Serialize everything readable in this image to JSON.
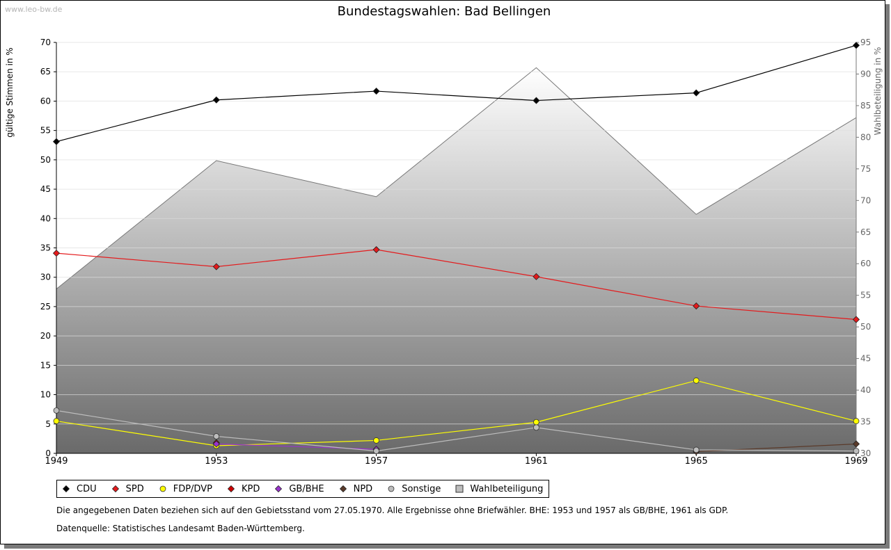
{
  "watermark": "www.leo-bw.de",
  "chart_data": {
    "type": "line",
    "title": "Bundestagswahlen: Bad Bellingen",
    "ylabel": "gültige Stimmen in %",
    "y2label": "Wahlbeteiligung in %",
    "x": [
      1949,
      1953,
      1957,
      1961,
      1965,
      1969
    ],
    "ylim": [
      0,
      70
    ],
    "y2lim": [
      30,
      95
    ],
    "yticks": [
      0,
      5,
      10,
      15,
      20,
      25,
      30,
      35,
      40,
      45,
      50,
      55,
      60,
      65,
      70
    ],
    "y2ticks": [
      30,
      35,
      40,
      45,
      50,
      55,
      60,
      65,
      70,
      75,
      80,
      85,
      90,
      95
    ],
    "grid": true,
    "legend_position": "bottom",
    "series": [
      {
        "name": "CDU",
        "color": "#000000",
        "marker": "diamond",
        "values": [
          53.1,
          60.2,
          61.7,
          60.1,
          61.4,
          69.5
        ]
      },
      {
        "name": "SPD",
        "color": "#e41a1c",
        "marker": "diamond",
        "values": [
          34.1,
          31.8,
          34.7,
          30.1,
          25.1,
          22.8
        ]
      },
      {
        "name": "FDP/DVP",
        "color": "#ffff00",
        "marker": "circle",
        "values": [
          5.5,
          1.3,
          2.2,
          5.3,
          12.4,
          5.5
        ]
      },
      {
        "name": "KPD",
        "color": "#cc0000",
        "marker": "diamond",
        "values": [
          null,
          1.8,
          null,
          null,
          null,
          null
        ]
      },
      {
        "name": "GB/BHE",
        "color": "#9933cc",
        "marker": "diamond",
        "values": [
          null,
          1.6,
          0.7,
          null,
          null,
          null
        ]
      },
      {
        "name": "NPD",
        "color": "#5a3a2a",
        "marker": "diamond",
        "values": [
          null,
          null,
          null,
          null,
          0.3,
          1.6
        ]
      },
      {
        "name": "Sonstige",
        "color": "#bdbdbd",
        "marker": "circle",
        "values": [
          7.3,
          2.9,
          0.4,
          4.4,
          0.6,
          0.4
        ]
      }
    ],
    "area_series": {
      "name": "Wahlbeteiligung",
      "axis": "right",
      "values": [
        56.0,
        76.3,
        70.6,
        91.0,
        67.8,
        83.1
      ]
    }
  },
  "notes": {
    "line1": "Die angegebenen Daten beziehen sich auf den Gebietsstand vom 27.05.1970. Alle Ergebnisse ohne Briefwähler. BHE: 1953 und 1957 als GB/BHE, 1961 als GDP.",
    "line2": "Datenquelle: Statistisches Landesamt Baden-Württemberg."
  }
}
